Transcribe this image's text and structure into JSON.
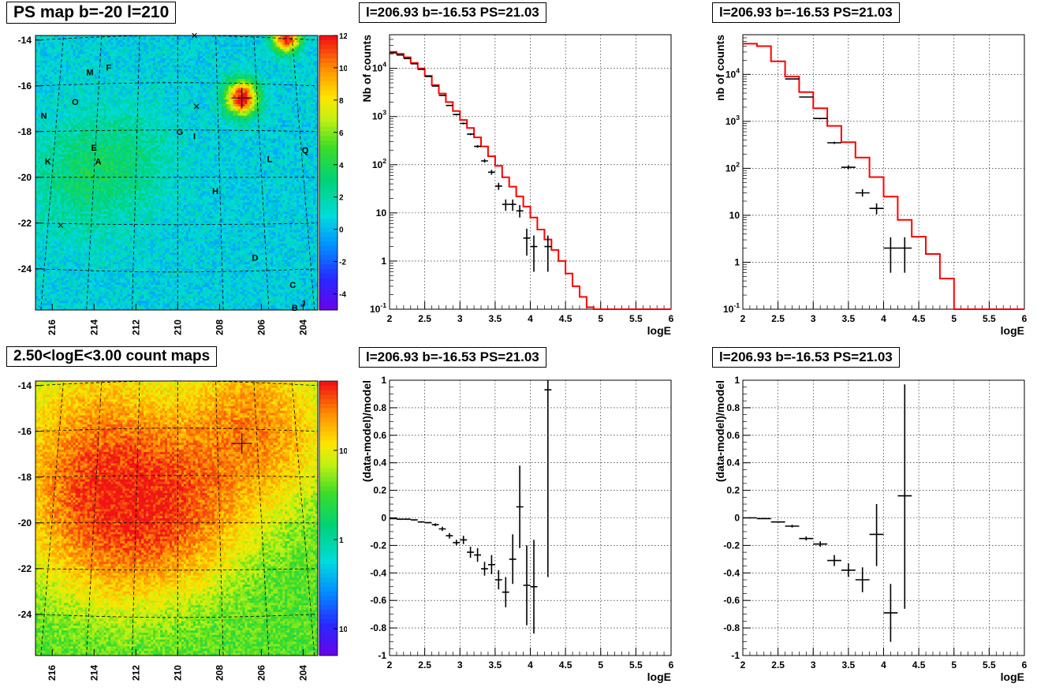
{
  "panels": {
    "ps_map_title": "PS map b=-20 l=210",
    "count_map_title": "2.50<logE<3.00 count maps",
    "spec1_title": "l=206.93 b=-16.53 PS=21.03",
    "spec2_title": "l=206.93 b=-16.53 PS=21.03",
    "resid1_title": "l=206.93 b=-16.53 PS=21.03",
    "resid2_title": "l=206.93 b=-16.53 PS=21.03"
  },
  "colors": {
    "model_line": "#ff0000",
    "data_points": "#000000",
    "grid": "#000000"
  },
  "chart_data": [
    {
      "id": "ps_map",
      "type": "heatmap",
      "title": "PS map b=-20 l=210",
      "xticks": [
        "216",
        "214",
        "212",
        "210",
        "208",
        "206",
        "204"
      ],
      "yticks": [
        "-14",
        "-16",
        "-18",
        "-20",
        "-22",
        "-24"
      ],
      "xlim": [
        216.8,
        203.3
      ],
      "ylim": [
        -25.8,
        -13.8
      ],
      "colorbar_ticks": [
        "12",
        "10",
        "8",
        "6",
        "4",
        "2",
        "0",
        "-2",
        "-4"
      ],
      "colorbar_range": [
        -5,
        12
      ],
      "base_level": 0.8,
      "hotspots": [
        {
          "l": 206.93,
          "b": -16.53,
          "amp": 12,
          "sigma": 0.55
        },
        {
          "l": 204.8,
          "b": -13.9,
          "amp": 12,
          "sigma": 0.45
        },
        {
          "l": 214.5,
          "b": -20.0,
          "amp": 2.4,
          "sigma": 1.8
        },
        {
          "l": 212.0,
          "b": -19.0,
          "amp": 1.4,
          "sigma": 1.5
        }
      ],
      "sources": [
        {
          "label": "M",
          "l": 214.2,
          "b": -15.4
        },
        {
          "label": "F",
          "l": 213.3,
          "b": -15.2
        },
        {
          "label": "O",
          "l": 214.9,
          "b": -16.7
        },
        {
          "label": "N",
          "l": 216.4,
          "b": -17.3
        },
        {
          "label": "G",
          "l": 209.9,
          "b": -18.0
        },
        {
          "label": "I",
          "l": 209.2,
          "b": -18.2
        },
        {
          "label": "E",
          "l": 214.0,
          "b": -18.7
        },
        {
          "label": "Q",
          "l": 203.9,
          "b": -18.8
        },
        {
          "label": "K",
          "l": 216.2,
          "b": -19.3
        },
        {
          "label": "A",
          "l": 213.8,
          "b": -19.3
        },
        {
          "label": "L",
          "l": 205.6,
          "b": -19.2
        },
        {
          "label": "H",
          "l": 208.2,
          "b": -20.6
        },
        {
          "label": "D",
          "l": 206.3,
          "b": -23.5
        },
        {
          "label": "C",
          "l": 204.5,
          "b": -24.7
        },
        {
          "label": "J",
          "l": 204.0,
          "b": -25.5
        },
        {
          "label": "B",
          "l": 204.4,
          "b": -25.7
        }
      ],
      "crosses": [
        {
          "l": 209.2,
          "b": -13.8
        },
        {
          "l": 209.1,
          "b": -16.9
        },
        {
          "l": 215.6,
          "b": -22.1
        }
      ],
      "marker": {
        "l": 206.93,
        "b": -16.53
      }
    },
    {
      "id": "count_map",
      "type": "heatmap",
      "title": "2.50<logE<3.00 count maps",
      "xticks": [
        "216",
        "214",
        "212",
        "210",
        "208",
        "206",
        "204"
      ],
      "yticks": [
        "-14",
        "-16",
        "-18",
        "-20",
        "-22",
        "-24"
      ],
      "xlim": [
        216.8,
        203.3
      ],
      "ylim": [
        -25.8,
        -13.8
      ],
      "colorbar_ticks": [
        "10",
        "1",
        "10-1"
      ],
      "colorbar_scale": "log",
      "colorbar_range": [
        0.05,
        60
      ],
      "hotspots": [
        {
          "l": 213.0,
          "b": -19.2,
          "amp": 40,
          "sigma": 2.2
        },
        {
          "l": 210.0,
          "b": -19.2,
          "amp": 25,
          "sigma": 2.0
        },
        {
          "l": 206.5,
          "b": -16.0,
          "amp": 25,
          "sigma": 2.0
        },
        {
          "l": 214.0,
          "b": -16.5,
          "amp": 14,
          "sigma": 2.5
        }
      ],
      "marker": {
        "l": 206.93,
        "b": -16.53
      }
    },
    {
      "id": "spectrum_1",
      "type": "line",
      "title": "l=206.93 b=-16.53 PS=21.03",
      "xlabel": "logE",
      "ylabel": "Nb of counts",
      "yscale": "log",
      "xlim": [
        2,
        6
      ],
      "ylim": [
        0.1,
        50000
      ],
      "xticks": [
        "2",
        "2.5",
        "3",
        "3.5",
        "4",
        "4.5",
        "5",
        "5.5",
        "6"
      ],
      "yticks": [
        "10-1",
        "1",
        "10",
        "10^2",
        "10^3",
        "10^4"
      ],
      "model_step_edges": [
        2.0,
        2.1,
        2.2,
        2.3,
        2.4,
        2.5,
        2.6,
        2.7,
        2.8,
        2.9,
        3.0,
        3.1,
        3.2,
        3.3,
        3.4,
        3.5,
        3.6,
        3.7,
        3.8,
        3.9,
        4.0,
        4.1,
        4.2,
        4.3,
        4.4,
        4.5,
        4.6,
        4.7,
        4.8,
        4.9,
        6.0
      ],
      "model_values": [
        22000,
        20000,
        17000,
        13000,
        10000,
        7000,
        4500,
        3000,
        2000,
        1300,
        850,
        580,
        370,
        240,
        150,
        95,
        55,
        35,
        22,
        13.5,
        8,
        4.5,
        2.8,
        1.7,
        1.0,
        0.55,
        0.3,
        0.18,
        0.11,
        0.1
      ],
      "data": [
        {
          "x": 2.05,
          "y": 21000,
          "xerr": 0.05,
          "ylo": 20600,
          "yhi": 21400
        },
        {
          "x": 2.15,
          "y": 19000,
          "xerr": 0.05,
          "ylo": 18600,
          "yhi": 19400
        },
        {
          "x": 2.25,
          "y": 16000,
          "xerr": 0.05,
          "ylo": 15600,
          "yhi": 16400
        },
        {
          "x": 2.35,
          "y": 12500,
          "xerr": 0.05,
          "ylo": 12200,
          "yhi": 12800
        },
        {
          "x": 2.45,
          "y": 9500,
          "xerr": 0.05,
          "ylo": 9300,
          "yhi": 9700
        },
        {
          "x": 2.55,
          "y": 6800,
          "xerr": 0.05,
          "ylo": 6650,
          "yhi": 6950
        },
        {
          "x": 2.65,
          "y": 4300,
          "xerr": 0.05,
          "ylo": 4200,
          "yhi": 4400
        },
        {
          "x": 2.75,
          "y": 2750,
          "xerr": 0.05,
          "ylo": 2680,
          "yhi": 2820
        },
        {
          "x": 2.85,
          "y": 1700,
          "xerr": 0.05,
          "ylo": 1650,
          "yhi": 1750
        },
        {
          "x": 2.95,
          "y": 1100,
          "xerr": 0.05,
          "ylo": 1060,
          "yhi": 1140
        },
        {
          "x": 3.05,
          "y": 720,
          "xerr": 0.05,
          "ylo": 690,
          "yhi": 750
        },
        {
          "x": 3.15,
          "y": 430,
          "xerr": 0.05,
          "ylo": 410,
          "yhi": 450
        },
        {
          "x": 3.25,
          "y": 240,
          "xerr": 0.05,
          "ylo": 225,
          "yhi": 255
        },
        {
          "x": 3.35,
          "y": 120,
          "xerr": 0.05,
          "ylo": 110,
          "yhi": 131
        },
        {
          "x": 3.45,
          "y": 70,
          "xerr": 0.05,
          "ylo": 62,
          "yhi": 78
        },
        {
          "x": 3.55,
          "y": 36,
          "xerr": 0.05,
          "ylo": 30,
          "yhi": 42
        },
        {
          "x": 3.65,
          "y": 15,
          "xerr": 0.05,
          "ylo": 11,
          "yhi": 19
        },
        {
          "x": 3.75,
          "y": 15,
          "xerr": 0.05,
          "ylo": 11,
          "yhi": 19
        },
        {
          "x": 3.85,
          "y": 11,
          "xerr": 0.05,
          "ylo": 8,
          "yhi": 14.5
        },
        {
          "x": 3.95,
          "y": 3,
          "xerr": 0.05,
          "ylo": 1.3,
          "yhi": 4.7
        },
        {
          "x": 4.05,
          "y": 2,
          "xerr": 0.05,
          "ylo": 0.6,
          "yhi": 3.4
        },
        {
          "x": 4.25,
          "y": 2,
          "xerr": 0.05,
          "ylo": 0.6,
          "yhi": 3.4
        }
      ]
    },
    {
      "id": "spectrum_2",
      "type": "line",
      "title": "l=206.93 b=-16.53 PS=21.03",
      "xlabel": "logE",
      "ylabel": "nb of counts",
      "yscale": "log",
      "xlim": [
        2,
        6
      ],
      "ylim": [
        0.1,
        70000
      ],
      "xticks": [
        "2",
        "2.5",
        "3",
        "3.5",
        "4",
        "4.5",
        "5",
        "5.5",
        "6"
      ],
      "yticks": [
        "10-1",
        "1",
        "10",
        "10^2",
        "10^3",
        "10^4"
      ],
      "model_step_edges": [
        2.0,
        2.2,
        2.4,
        2.6,
        2.8,
        3.0,
        3.2,
        3.4,
        3.6,
        3.8,
        4.0,
        4.2,
        4.4,
        4.6,
        4.8,
        5.0,
        6.0
      ],
      "model_values": [
        45000,
        40000,
        19000,
        9000,
        4200,
        1900,
        800,
        360,
        170,
        65,
        25,
        8,
        3.5,
        1.5,
        0.45,
        0.1
      ],
      "data": [
        {
          "x": 2.7,
          "y": 8000,
          "xerr": 0.1,
          "ylo": 7800,
          "yhi": 8200
        },
        {
          "x": 2.9,
          "y": 3300,
          "xerr": 0.1,
          "ylo": 3200,
          "yhi": 3400
        },
        {
          "x": 3.1,
          "y": 1150,
          "xerr": 0.1,
          "ylo": 1110,
          "yhi": 1190
        },
        {
          "x": 3.3,
          "y": 350,
          "xerr": 0.1,
          "ylo": 330,
          "yhi": 370
        },
        {
          "x": 3.5,
          "y": 105,
          "xerr": 0.1,
          "ylo": 95,
          "yhi": 115
        },
        {
          "x": 3.7,
          "y": 30,
          "xerr": 0.1,
          "ylo": 25,
          "yhi": 36
        },
        {
          "x": 3.9,
          "y": 14,
          "xerr": 0.1,
          "ylo": 10.5,
          "yhi": 18
        },
        {
          "x": 4.1,
          "y": 2,
          "xerr": 0.1,
          "ylo": 0.6,
          "yhi": 3.4
        },
        {
          "x": 4.3,
          "y": 2,
          "xerr": 0.1,
          "ylo": 0.6,
          "yhi": 3.4
        }
      ]
    },
    {
      "id": "residual_1",
      "type": "scatter",
      "title": "l=206.93 b=-16.53 PS=21.03",
      "xlabel": "logE",
      "ylabel": "(data-model)/model",
      "xlim": [
        2,
        6
      ],
      "ylim": [
        -1,
        1
      ],
      "xticks": [
        "2",
        "2.5",
        "3",
        "3.5",
        "4",
        "4.5",
        "5",
        "5.5",
        "6"
      ],
      "yticks": [
        "-1",
        "-0.8",
        "-0.6",
        "-0.4",
        "-0.2",
        "0",
        "0.2",
        "0.4",
        "0.6",
        "0.8",
        "1"
      ],
      "data": [
        {
          "x": 2.05,
          "y": -0.005,
          "xerr": 0.05,
          "ylo": -0.01,
          "yhi": 0.0
        },
        {
          "x": 2.15,
          "y": -0.01,
          "xerr": 0.05,
          "ylo": -0.015,
          "yhi": -0.005
        },
        {
          "x": 2.25,
          "y": -0.01,
          "xerr": 0.05,
          "ylo": -0.015,
          "yhi": -0.005
        },
        {
          "x": 2.35,
          "y": -0.015,
          "xerr": 0.05,
          "ylo": -0.02,
          "yhi": -0.01
        },
        {
          "x": 2.45,
          "y": -0.03,
          "xerr": 0.05,
          "ylo": -0.035,
          "yhi": -0.025
        },
        {
          "x": 2.55,
          "y": -0.035,
          "xerr": 0.05,
          "ylo": -0.04,
          "yhi": -0.03
        },
        {
          "x": 2.65,
          "y": -0.05,
          "xerr": 0.05,
          "ylo": -0.06,
          "yhi": -0.04
        },
        {
          "x": 2.75,
          "y": -0.08,
          "xerr": 0.05,
          "ylo": -0.095,
          "yhi": -0.065
        },
        {
          "x": 2.85,
          "y": -0.13,
          "xerr": 0.05,
          "ylo": -0.15,
          "yhi": -0.11
        },
        {
          "x": 2.95,
          "y": -0.18,
          "xerr": 0.05,
          "ylo": -0.2,
          "yhi": -0.16
        },
        {
          "x": 3.05,
          "y": -0.16,
          "xerr": 0.05,
          "ylo": -0.19,
          "yhi": -0.13
        },
        {
          "x": 3.15,
          "y": -0.25,
          "xerr": 0.05,
          "ylo": -0.29,
          "yhi": -0.21
        },
        {
          "x": 3.25,
          "y": -0.27,
          "xerr": 0.05,
          "ylo": -0.32,
          "yhi": -0.22
        },
        {
          "x": 3.35,
          "y": -0.37,
          "xerr": 0.05,
          "ylo": -0.42,
          "yhi": -0.32
        },
        {
          "x": 3.45,
          "y": -0.34,
          "xerr": 0.05,
          "ylo": -0.41,
          "yhi": -0.27
        },
        {
          "x": 3.55,
          "y": -0.45,
          "xerr": 0.05,
          "ylo": -0.52,
          "yhi": -0.38
        },
        {
          "x": 3.65,
          "y": -0.54,
          "xerr": 0.05,
          "ylo": -0.65,
          "yhi": -0.43
        },
        {
          "x": 3.75,
          "y": -0.3,
          "xerr": 0.05,
          "ylo": -0.48,
          "yhi": -0.12
        },
        {
          "x": 3.85,
          "y": 0.08,
          "xerr": 0.05,
          "ylo": -0.22,
          "yhi": 0.38
        },
        {
          "x": 3.95,
          "y": -0.49,
          "xerr": 0.05,
          "ylo": -0.78,
          "yhi": -0.2
        },
        {
          "x": 4.05,
          "y": -0.5,
          "xerr": 0.05,
          "ylo": -0.84,
          "yhi": -0.16
        },
        {
          "x": 4.25,
          "y": 0.93,
          "xerr": 0.05,
          "ylo": -0.43,
          "yhi": 1.0
        }
      ]
    },
    {
      "id": "residual_2",
      "type": "scatter",
      "title": "l=206.93 b=-16.53 PS=21.03",
      "xlabel": "logE",
      "ylabel": "(data-model)/model",
      "xlim": [
        2,
        6
      ],
      "ylim": [
        -1,
        1
      ],
      "xticks": [
        "2",
        "2.5",
        "3",
        "3.5",
        "4",
        "4.5",
        "5",
        "5.5",
        "6"
      ],
      "yticks": [
        "-1",
        "-0.8",
        "-0.6",
        "-0.4",
        "-0.2",
        "0",
        "0.2",
        "0.4",
        "0.6",
        "0.8",
        "1"
      ],
      "data": [
        {
          "x": 2.1,
          "y": 0.0,
          "xerr": 0.1,
          "ylo": -0.005,
          "yhi": 0.005
        },
        {
          "x": 2.3,
          "y": -0.005,
          "xerr": 0.1,
          "ylo": -0.01,
          "yhi": 0.0
        },
        {
          "x": 2.5,
          "y": -0.03,
          "xerr": 0.1,
          "ylo": -0.035,
          "yhi": -0.025
        },
        {
          "x": 2.7,
          "y": -0.06,
          "xerr": 0.1,
          "ylo": -0.07,
          "yhi": -0.05
        },
        {
          "x": 2.9,
          "y": -0.15,
          "xerr": 0.1,
          "ylo": -0.165,
          "yhi": -0.135
        },
        {
          "x": 3.1,
          "y": -0.19,
          "xerr": 0.1,
          "ylo": -0.21,
          "yhi": -0.17
        },
        {
          "x": 3.3,
          "y": -0.31,
          "xerr": 0.1,
          "ylo": -0.35,
          "yhi": -0.27
        },
        {
          "x": 3.5,
          "y": -0.38,
          "xerr": 0.1,
          "ylo": -0.43,
          "yhi": -0.33
        },
        {
          "x": 3.7,
          "y": -0.45,
          "xerr": 0.1,
          "ylo": -0.54,
          "yhi": -0.36
        },
        {
          "x": 3.9,
          "y": -0.12,
          "xerr": 0.1,
          "ylo": -0.35,
          "yhi": 0.1
        },
        {
          "x": 4.1,
          "y": -0.69,
          "xerr": 0.1,
          "ylo": -0.9,
          "yhi": -0.48
        },
        {
          "x": 4.3,
          "y": 0.16,
          "xerr": 0.1,
          "ylo": -0.66,
          "yhi": 0.97
        }
      ]
    }
  ]
}
